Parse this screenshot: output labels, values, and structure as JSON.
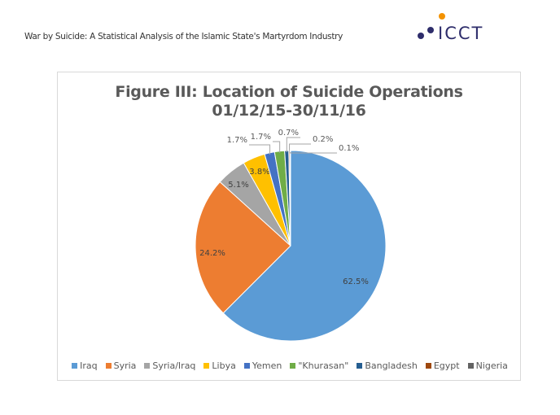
{
  "header": {
    "title": "War by Suicide: A Statistical Analysis of the Islamic State's Martyrdom Industry"
  },
  "logo": {
    "text": "ICCT",
    "dot_color": "#F39200",
    "brand_color": "#2E2D6B"
  },
  "chart_data": {
    "type": "pie",
    "title": "Figure III: Location of Suicide Operations",
    "subtitle": "01/12/15-30/11/16",
    "categories": [
      "Iraq",
      "Syria",
      "Syria/Iraq",
      "Libya",
      "Yemen",
      "\"Khurasan\"",
      "Bangladesh",
      "Egypt",
      "Nigeria"
    ],
    "values": [
      62.5,
      24.2,
      5.1,
      3.8,
      1.7,
      1.7,
      0.7,
      0.2,
      0.1
    ],
    "data_labels": [
      "62.5%",
      "24.2%",
      "5.1%",
      "3.8%",
      "1.7%",
      "1.7%",
      "0.7%",
      "0.2%",
      "0.1%"
    ],
    "colors": [
      "#5B9BD5",
      "#ED7D31",
      "#A5A5A5",
      "#FFC000",
      "#4472C4",
      "#70AD47",
      "#255E91",
      "#9E480E",
      "#636363"
    ],
    "legend_position": "bottom",
    "start_angle": "12 o'clock, clockwise"
  }
}
